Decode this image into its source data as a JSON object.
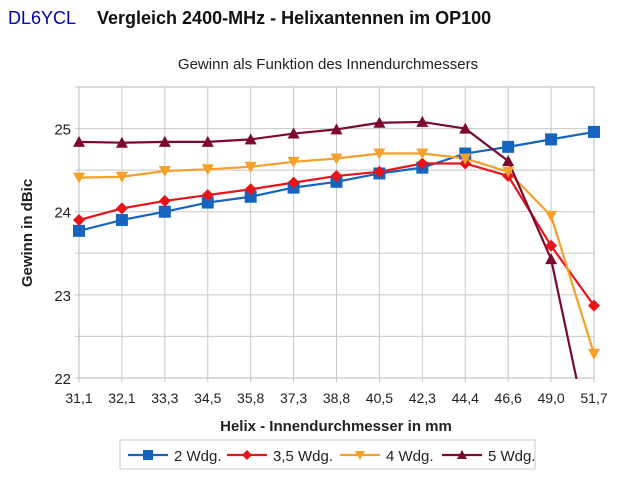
{
  "header": {
    "author": "DL6YCL",
    "title": "Vergleich 2400-MHz - Helixantennen im OP100"
  },
  "chart_data": {
    "type": "line",
    "title": "Gewinn als Funktion des Innendurchmessers",
    "xlabel": "Helix - Innendurchmesser in mm",
    "ylabel": "Gewinn in dBic",
    "categories": [
      "31,1",
      "32,1",
      "33,3",
      "34,5",
      "35,8",
      "37,3",
      "38,8",
      "40,5",
      "42,3",
      "44,4",
      "46,6",
      "49,0",
      "51,7"
    ],
    "ylim": [
      22,
      25.5
    ],
    "yticks": [
      "22",
      "23",
      "24",
      "25"
    ],
    "y_minor_step": 0.5,
    "grid": true,
    "legend_position": "bottom",
    "series": [
      {
        "name": "2 Wdg.",
        "color": "#1565c0",
        "marker": "square",
        "values": [
          23.77,
          23.9,
          24.0,
          24.11,
          24.18,
          24.29,
          24.36,
          24.46,
          24.53,
          24.7,
          24.78,
          24.87,
          24.96
        ]
      },
      {
        "name": "3,5 Wdg.",
        "color": "#e8141a",
        "marker": "diamond",
        "values": [
          23.9,
          24.04,
          24.13,
          24.2,
          24.27,
          24.35,
          24.43,
          24.48,
          24.58,
          24.58,
          24.43,
          23.59,
          22.87
        ]
      },
      {
        "name": "4 Wdg.",
        "color": "#f5a02a",
        "marker": "triangle-down",
        "values": [
          24.41,
          24.42,
          24.49,
          24.51,
          24.54,
          24.6,
          24.64,
          24.7,
          24.7,
          24.64,
          24.48,
          23.95,
          22.29
        ]
      },
      {
        "name": "5 Wdg.",
        "color": "#7b0a2e",
        "marker": "triangle-up",
        "values": [
          24.84,
          24.83,
          24.84,
          24.84,
          24.87,
          24.94,
          24.99,
          25.07,
          25.08,
          25.0,
          24.61,
          23.43,
          21.0
        ]
      }
    ]
  }
}
